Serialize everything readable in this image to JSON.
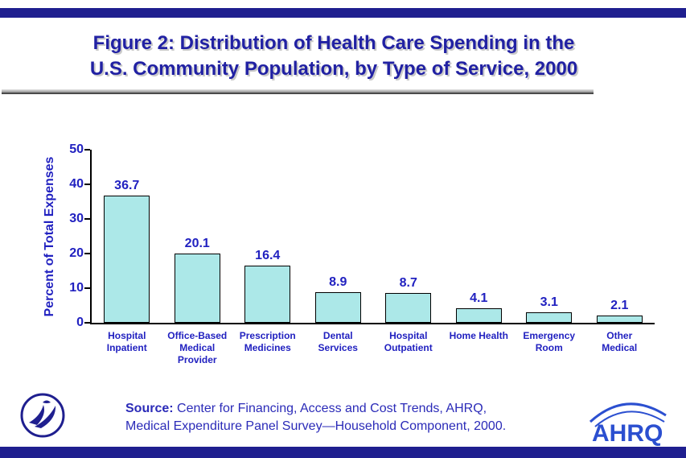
{
  "title": {
    "line1": "Figure 2: Distribution of Health Care Spending in the",
    "line2": "U.S. Community Population, by Type of Service, 2000"
  },
  "chart_data": {
    "type": "bar",
    "categories": [
      [
        "Hospital",
        "Inpatient"
      ],
      [
        "Office-Based",
        "Medical",
        "Provider"
      ],
      [
        "Prescription",
        "Medicines"
      ],
      [
        "Dental",
        "Services"
      ],
      [
        "Hospital",
        "Outpatient"
      ],
      [
        "Home Health"
      ],
      [
        "Emergency",
        "Room"
      ],
      [
        "Other",
        "Medical"
      ]
    ],
    "values": [
      36.7,
      20.1,
      16.4,
      8.9,
      8.7,
      4.1,
      3.1,
      2.1
    ],
    "title": "Figure 2: Distribution of Health Care Spending in the U.S. Community Population, by Type of Service, 2000",
    "xlabel": "",
    "ylabel": "Percent of Total Expenses",
    "ylim": [
      0,
      50
    ],
    "yticks": [
      0,
      10,
      20,
      30,
      40,
      50
    ],
    "grid": false,
    "legend": "none",
    "bar_fill": "#ace8e8",
    "bar_border": "#000000"
  },
  "footer": {
    "source_bold": "Source:",
    "source_rest": " Center for Financing, Access and Cost Trends, AHRQ,",
    "source_line2": "Medical Expenditure Panel Survey—Household Component, 2000.",
    "ahrq_text": "AHRQ",
    "hhs_logo": "hhs-eagle-logo"
  },
  "colors": {
    "band": "#1f1f8f",
    "title_text": "#2121a3",
    "axis_text": "#2121c0",
    "source_text": "#2b2bb8",
    "ahrq_blue": "#2b4fd0"
  }
}
